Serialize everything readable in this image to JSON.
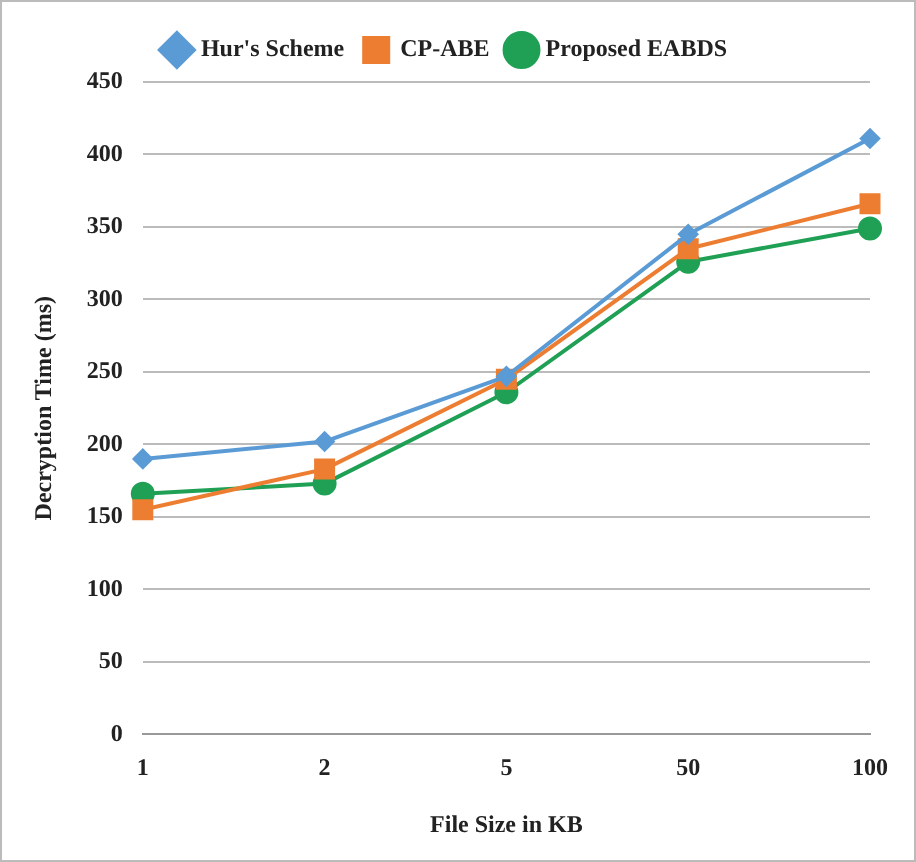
{
  "chart_data": {
    "type": "line",
    "xlabel": "File Size in KB",
    "ylabel": "Decryption Time (ms)",
    "categories": [
      "1",
      "2",
      "5",
      "50",
      "100"
    ],
    "series": [
      {
        "name": "Hur's Scheme",
        "color": "#5b9bd5",
        "marker": "diamond",
        "values": [
          190,
          202,
          247,
          345,
          411
        ]
      },
      {
        "name": "CP-ABE",
        "color": "#ed7d31",
        "marker": "square",
        "values": [
          155,
          183,
          245,
          335,
          366
        ]
      },
      {
        "name": "Proposed EABDS",
        "color": "#1fa055",
        "marker": "circle",
        "values": [
          166,
          173,
          236,
          326,
          349
        ]
      }
    ],
    "ylim": [
      0,
      450
    ],
    "yticks": [
      0,
      50,
      100,
      150,
      200,
      250,
      300,
      350,
      400,
      450
    ],
    "grid": "y",
    "legend": "top"
  }
}
